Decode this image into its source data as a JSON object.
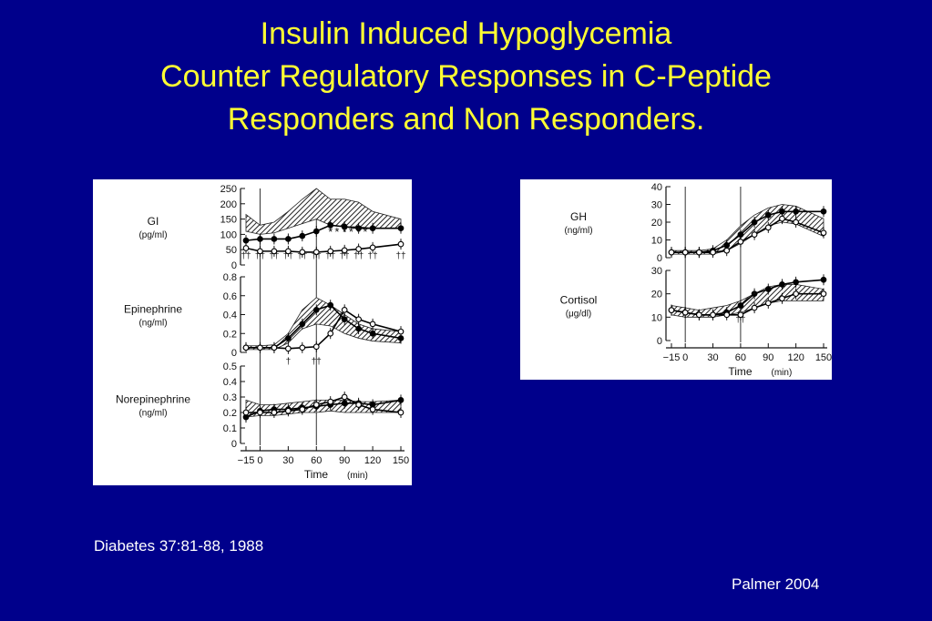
{
  "title": {
    "line1": "Insulin Induced Hypoglycemia",
    "line2": "Counter Regulatory Responses in C-Peptide",
    "line3": "Responders and Non Responders."
  },
  "citation": "Diabetes 37:81-88, 1988",
  "credit": "Palmer 2004",
  "colors": {
    "background": "#00008b",
    "title": "#ffff33",
    "text": "#ffffff",
    "panel": "#ffffff"
  },
  "chart_data": [
    {
      "type": "line",
      "panel": "A",
      "xlabel": "Time",
      "xunit": "(min)",
      "x": [
        -15,
        0,
        15,
        30,
        45,
        60,
        75,
        90,
        105,
        120,
        150
      ],
      "xticks": [
        "−15",
        "0",
        "30",
        "60",
        "90",
        "120",
        "150"
      ],
      "xtick_values": [
        -15,
        0,
        30,
        60,
        90,
        120,
        150
      ],
      "vlines": [
        0,
        60
      ],
      "subplots": [
        {
          "label": "GI",
          "unit": "(pg/ml)",
          "ylim": [
            0,
            250
          ],
          "yticks": [
            0,
            50,
            100,
            150,
            200,
            250
          ],
          "band": {
            "upper": [
              165,
              130,
              140,
              175,
              215,
              250,
              215,
              215,
              205,
              175,
              150
            ],
            "lower": [
              110,
              100,
              105,
              120,
              135,
              150,
              130,
              125,
              125,
              120,
              120
            ]
          },
          "series": [
            {
              "marker": "filled",
              "values": [
                80,
                85,
                85,
                85,
                95,
                110,
                130,
                125,
                120,
                120,
                120
              ]
            },
            {
              "marker": "open",
              "values": [
                55,
                45,
                45,
                45,
                42,
                42,
                45,
                48,
                52,
                57,
                68
              ]
            }
          ],
          "annotations": [
            "*",
            "*",
            "*",
            "*",
            "*",
            "*"
          ],
          "daggers": [
            "††",
            "††",
            "††",
            "††",
            "††",
            "††",
            "††",
            "††",
            "††",
            "††",
            "††"
          ]
        },
        {
          "label": "Epinephrine",
          "unit": "(ng/ml)",
          "ylim": [
            0,
            0.8
          ],
          "yticks": [
            "0",
            "0.2",
            "0.4",
            "0.6",
            "0.8"
          ],
          "ytick_values": [
            0,
            0.2,
            0.4,
            0.6,
            0.8
          ],
          "band": {
            "upper": [
              0.07,
              0.07,
              0.08,
              0.2,
              0.45,
              0.58,
              0.5,
              0.4,
              0.3,
              0.25,
              0.22
            ],
            "lower": [
              0.03,
              0.03,
              0.03,
              0.1,
              0.25,
              0.3,
              0.28,
              0.2,
              0.15,
              0.12,
              0.1
            ]
          },
          "series": [
            {
              "marker": "filled",
              "values": [
                0.05,
                0.05,
                0.05,
                0.15,
                0.3,
                0.45,
                0.5,
                0.35,
                0.25,
                0.2,
                0.15
              ]
            },
            {
              "marker": "open",
              "values": [
                0.05,
                0.05,
                0.05,
                0.04,
                0.05,
                0.06,
                0.2,
                0.45,
                0.35,
                0.3,
                0.22
              ]
            }
          ],
          "daggers": [
            "†",
            "††"
          ]
        },
        {
          "label": "Norepinephrine",
          "unit": "(ng/ml)",
          "ylim": [
            0,
            0.5
          ],
          "yticks": [
            "0",
            "0.1",
            "0.2",
            "0.3",
            "0.4",
            "0.5"
          ],
          "ytick_values": [
            0,
            0.1,
            0.2,
            0.3,
            0.4,
            0.5
          ],
          "band": {
            "upper": [
              0.28,
              0.25,
              0.25,
              0.26,
              0.27,
              0.28,
              0.28,
              0.28,
              0.27,
              0.27,
              0.28
            ],
            "lower": [
              0.17,
              0.18,
              0.18,
              0.19,
              0.2,
              0.2,
              0.21,
              0.2,
              0.2,
              0.2,
              0.2
            ]
          },
          "series": [
            {
              "marker": "filled",
              "values": [
                0.17,
                0.21,
                0.22,
                0.22,
                0.23,
                0.24,
                0.25,
                0.26,
                0.26,
                0.25,
                0.28
              ]
            },
            {
              "marker": "open",
              "values": [
                0.2,
                0.2,
                0.2,
                0.21,
                0.22,
                0.25,
                0.27,
                0.3,
                0.25,
                0.22,
                0.2
              ]
            }
          ]
        }
      ]
    },
    {
      "type": "line",
      "panel": "B",
      "xlabel": "Time",
      "xunit": "(min)",
      "x": [
        -15,
        0,
        15,
        30,
        45,
        60,
        75,
        90,
        105,
        120,
        150
      ],
      "xticks": [
        "−15",
        "0",
        "30",
        "60",
        "90",
        "120",
        "150"
      ],
      "xtick_values": [
        -15,
        0,
        30,
        60,
        90,
        120,
        150
      ],
      "vlines": [
        0,
        60
      ],
      "subplots": [
        {
          "label": "GH",
          "unit": "(ng/ml)",
          "ylim": [
            0,
            40
          ],
          "yticks": [
            0,
            10,
            20,
            30,
            40
          ],
          "band": {
            "upper": [
              4,
              4,
              4,
              5,
              10,
              18,
              24,
              28,
              30,
              29,
              22
            ],
            "lower": [
              2,
              2,
              2,
              2,
              4,
              8,
              13,
              18,
              20,
              19,
              12
            ]
          },
          "series": [
            {
              "marker": "filled",
              "values": [
                3,
                3,
                3,
                4,
                7,
                13,
                20,
                24,
                26,
                26,
                26
              ]
            },
            {
              "marker": "open",
              "values": [
                3,
                3,
                3,
                3,
                4,
                9,
                13,
                17,
                22,
                20,
                14
              ]
            }
          ]
        },
        {
          "label": "Cortisol",
          "unit": "(μg/dl)",
          "ylim": [
            0,
            30
          ],
          "yticks": [
            0,
            10,
            20,
            30
          ],
          "band": {
            "upper": [
              15,
              14,
              13,
              14,
              15,
              17,
              20,
              23,
              24,
              24,
              22
            ],
            "lower": [
              11,
              10,
              10,
              10,
              11,
              12,
              14,
              16,
              17,
              17,
              17
            ]
          },
          "series": [
            {
              "marker": "filled",
              "values": [
                13,
                12,
                11,
                11,
                12,
                15,
                20,
                22,
                24,
                25,
                26
              ]
            },
            {
              "marker": "open",
              "values": [
                13,
                12,
                11,
                11,
                11,
                11,
                14,
                16,
                18,
                20,
                20
              ]
            }
          ],
          "annotations": [
            "*"
          ],
          "daggers": [
            "††"
          ]
        }
      ]
    }
  ]
}
